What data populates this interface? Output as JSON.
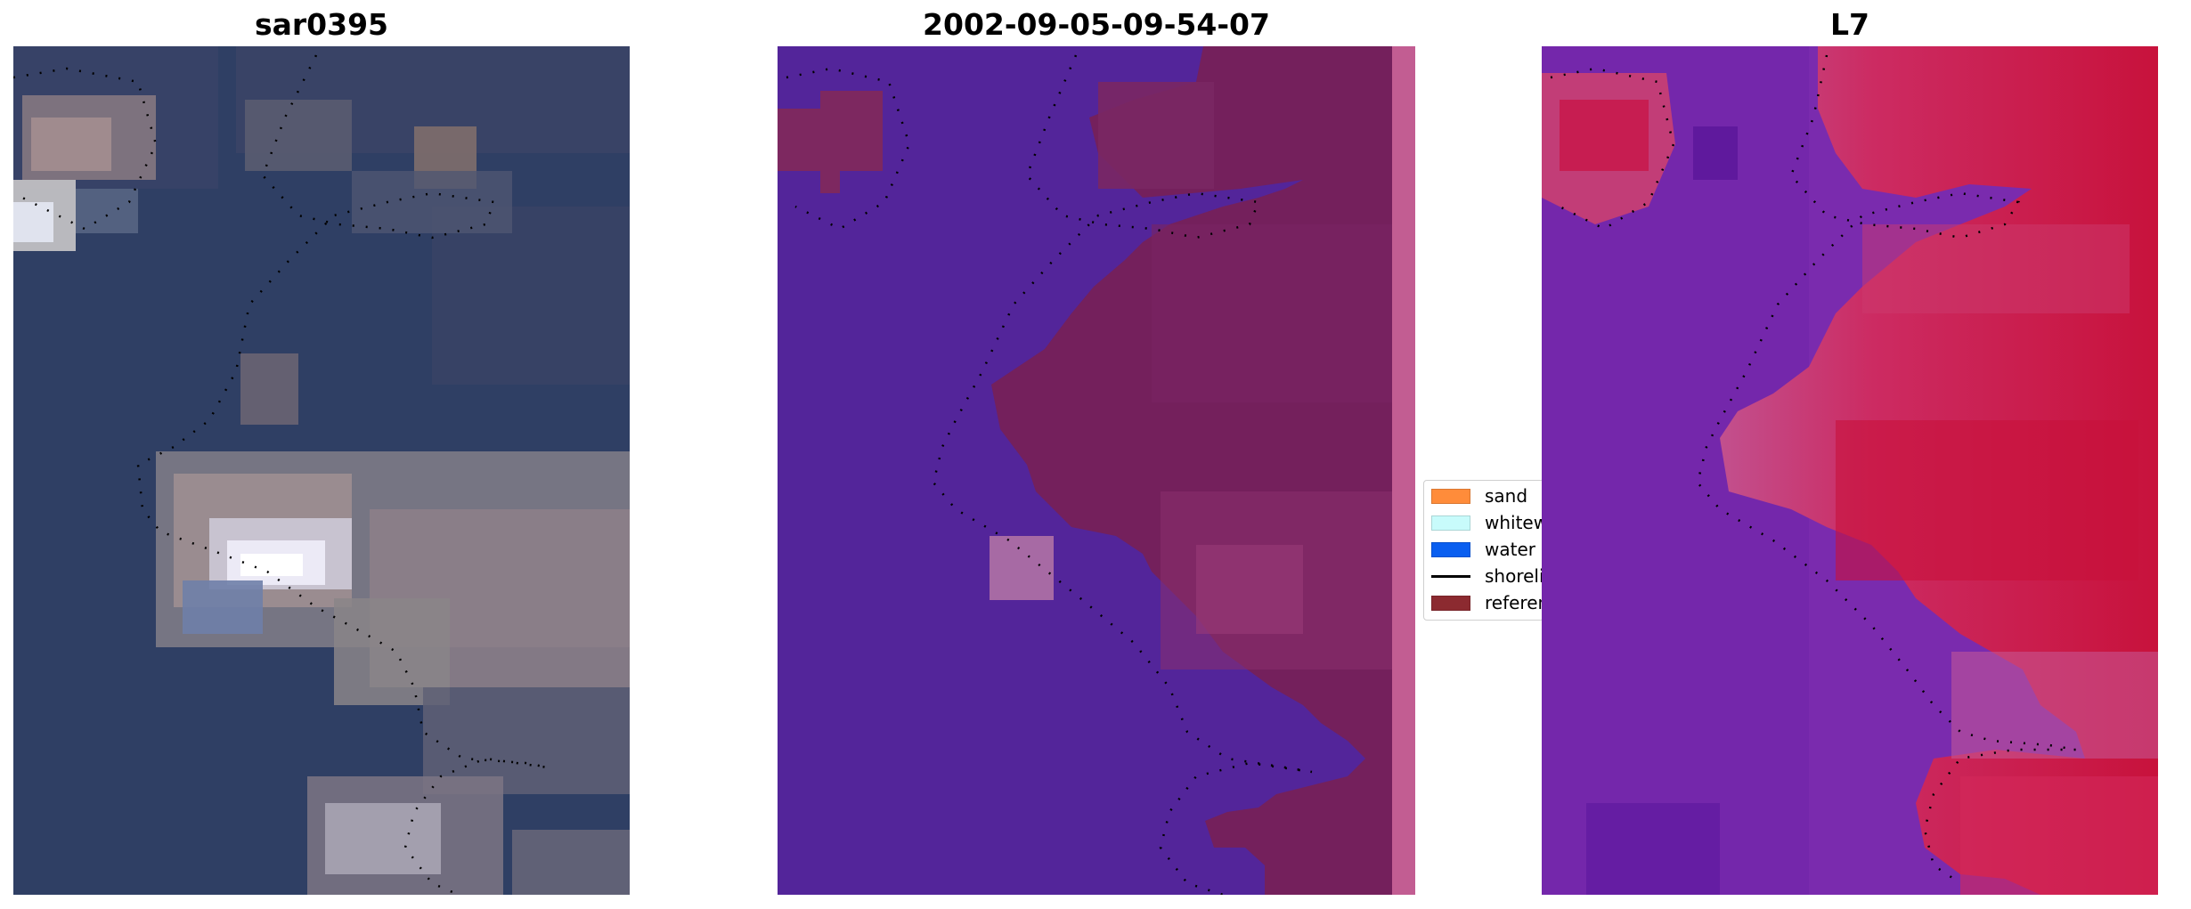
{
  "panels": [
    {
      "id": "rgb",
      "title": "sar0395"
    },
    {
      "id": "classes",
      "title": "2002-09-05-09-54-07"
    },
    {
      "id": "index",
      "title": "L7"
    }
  ],
  "legend": {
    "items": [
      {
        "label": "sand",
        "color": "#ff8c3a",
        "type": "patch"
      },
      {
        "label": "whitewater",
        "color": "#c8fbfb",
        "type": "patch"
      },
      {
        "label": "water",
        "color": "#0a5ff0",
        "type": "patch"
      },
      {
        "label": "shoreline",
        "color": "#000000",
        "type": "line"
      },
      {
        "label": "reference",
        "color": "#8c2a30",
        "type": "patch"
      }
    ]
  },
  "colors": {
    "rgb_sea": "#2e3f66",
    "rgb_sand": "#8a7f84",
    "rgb_bright": "#f5f4fb",
    "class_water": "#53259a",
    "class_land": "#74205c",
    "class_edge": "#c25d92",
    "index_low": "#7a2bae",
    "index_high": "#c8123c",
    "shoreline": "#000000"
  }
}
